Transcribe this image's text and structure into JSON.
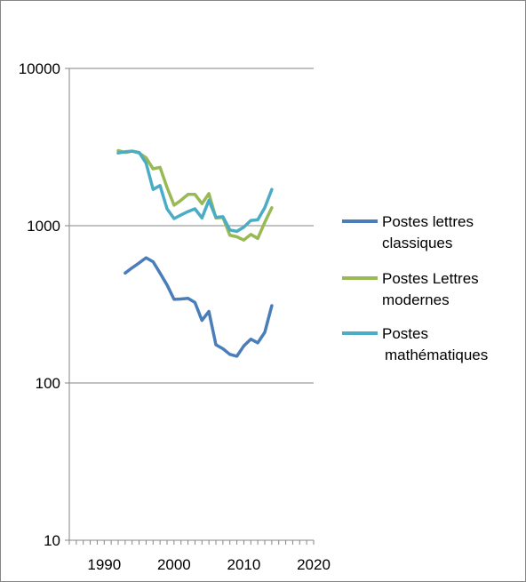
{
  "chart_data": {
    "type": "line",
    "title": "",
    "xlabel": "",
    "ylabel": "",
    "x_axis": {
      "min": 1985,
      "max": 2020,
      "ticks": [
        1990,
        2000,
        2010,
        2020
      ],
      "tick_labels": [
        "1990",
        "2000",
        "2010",
        "2020"
      ],
      "minor_tick_step": 1
    },
    "y_axis": {
      "scale": "log",
      "min": 10,
      "max": 10000,
      "ticks": [
        10,
        100,
        1000,
        10000
      ],
      "tick_labels": [
        "10",
        "100",
        "1000",
        "10000"
      ]
    },
    "grid": "horizontal",
    "legend_position": "right",
    "series": [
      {
        "name": "Postes lettres classiques",
        "legend_lines": [
          "Postes lettres",
          "classiques"
        ],
        "color": "#4a7ebb",
        "x": [
          1993,
          1994,
          1995,
          1996,
          1997,
          1998,
          1999,
          2000,
          2001,
          2002,
          2003,
          2004,
          2005,
          2006,
          2007,
          2008,
          2009,
          2010,
          2011,
          2012,
          2013,
          2014
        ],
        "values": [
          500,
          540,
          580,
          625,
          590,
          500,
          420,
          340,
          342,
          345,
          325,
          250,
          285,
          175,
          165,
          152,
          148,
          172,
          190,
          180,
          210,
          310
        ]
      },
      {
        "name": "Postes Lettres modernes",
        "legend_lines": [
          "Postes Lettres",
          "modernes"
        ],
        "color": "#98b954",
        "x": [
          1992,
          1993,
          1994,
          1995,
          1996,
          1997,
          1998,
          1999,
          2000,
          2001,
          2002,
          2003,
          2004,
          2005,
          2006,
          2007,
          2008,
          2009,
          2010,
          2011,
          2012,
          2013,
          2014
        ],
        "values": [
          3000,
          2920,
          2980,
          2900,
          2700,
          2300,
          2350,
          1750,
          1350,
          1450,
          1580,
          1580,
          1380,
          1600,
          1120,
          1130,
          870,
          850,
          810,
          880,
          830,
          1050,
          1300
        ]
      },
      {
        "name": "Postes mathématiques",
        "legend_lines": [
          "Postes",
          "mathématiques"
        ],
        "color": "#4bacc6",
        "x": [
          1992,
          1993,
          1994,
          1995,
          1996,
          1997,
          1998,
          1999,
          2000,
          2001,
          2002,
          2003,
          2004,
          2005,
          2006,
          2007,
          2008,
          2009,
          2010,
          2011,
          2012,
          2013,
          2014
        ],
        "values": [
          2900,
          2950,
          2980,
          2920,
          2500,
          1700,
          1800,
          1280,
          1110,
          1170,
          1230,
          1280,
          1120,
          1450,
          1130,
          1140,
          940,
          920,
          980,
          1080,
          1090,
          1300,
          1700
        ]
      }
    ]
  }
}
